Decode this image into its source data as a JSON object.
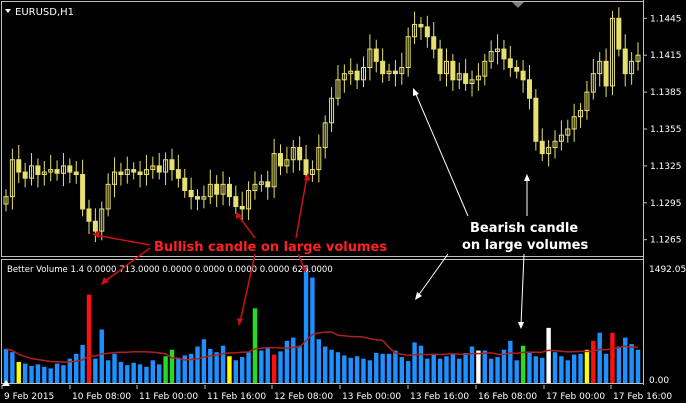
{
  "main": {
    "symbol": "EURUSD,H1",
    "price_ticks": [
      "1.1445",
      "1.1415",
      "1.1385",
      "1.1355",
      "1.1325",
      "1.1295",
      "1.1265"
    ],
    "annotations": {
      "bullish": "Bullish candle on large volumes",
      "bearish_line1": "Bearish candle",
      "bearish_line2": "on large volumes"
    }
  },
  "indicator": {
    "label": "Better Volume 1.4 0.0000 713.0000 0.0000 0.0000 0.0000 0.0000 626.0000",
    "max_label": "1492.05",
    "min_label": "0.00"
  },
  "time_axis": {
    "labels": [
      "9 Feb 2015",
      "10 Feb 08:00",
      "11 Feb 00:00",
      "11 Feb 16:00",
      "12 Feb 08:00",
      "13 Feb 00:00",
      "13 Feb 16:00",
      "16 Feb 08:00",
      "17 Feb 00:00",
      "17 Feb 16:00"
    ]
  },
  "colors": {
    "background": "#000000",
    "grid_border": "#c0c0c0",
    "candle": "#e6e070",
    "vol_normal": "#1e90ff",
    "vol_high": "#ff1010",
    "vol_climax": "#ffffff",
    "vol_low": "#ffff00",
    "vol_churn": "#22dd22",
    "vol_average": "#b02020",
    "bullish_arrow": "#d01010",
    "bullish_text": "#ff2020",
    "bearish_text": "#ffffff"
  },
  "chart_data": {
    "type": "candlestick",
    "series": [
      {
        "name": "EURUSD,H1",
        "values_description_free": true
      }
    ],
    "price_range": [
      1.1255,
      1.1455
    ],
    "closes": [
      1.13,
      1.133,
      1.132,
      1.1315,
      1.1325,
      1.1318,
      1.132,
      1.1322,
      1.1319,
      1.1325,
      1.132,
      1.1318,
      1.129,
      1.128,
      1.1272,
      1.129,
      1.131,
      1.132,
      1.1318,
      1.1322,
      1.132,
      1.1318,
      1.1322,
      1.1325,
      1.132,
      1.133,
      1.1322,
      1.1315,
      1.1305,
      1.13,
      1.1298,
      1.13,
      1.131,
      1.1302,
      1.131,
      1.13,
      1.1292,
      1.129,
      1.1305,
      1.131,
      1.1312,
      1.1308,
      1.1335,
      1.1325,
      1.133,
      1.134,
      1.133,
      1.1318,
      1.1322,
      1.134,
      1.136,
      1.138,
      1.1395,
      1.14,
      1.1402,
      1.1395,
      1.1405,
      1.142,
      1.141,
      1.14,
      1.1402,
      1.14,
      1.1405,
      1.143,
      1.144,
      1.1438,
      1.143,
      1.142,
      1.14,
      1.141,
      1.1395,
      1.14,
      1.1392,
      1.1395,
      1.1398,
      1.141,
      1.1418,
      1.142,
      1.1412,
      1.1405,
      1.1402,
      1.1395,
      1.138,
      1.1345,
      1.1335,
      1.134,
      1.1345,
      1.135,
      1.1355,
      1.1365,
      1.137,
      1.1385,
      1.14,
      1.141,
      1.139,
      1.1445,
      1.142,
      1.14,
      1.141,
      1.1415
    ],
    "volumes": [
      420,
      380,
      260,
      240,
      210,
      230,
      200,
      180,
      240,
      220,
      300,
      360,
      470,
      1090,
      300,
      660,
      280,
      360,
      260,
      220,
      250,
      230,
      200,
      280,
      230,
      330,
      410,
      300,
      340,
      360,
      450,
      540,
      420,
      380,
      460,
      330,
      280,
      320,
      380,
      920,
      400,
      440,
      350,
      390,
      520,
      560,
      460,
      1450,
      1300,
      540,
      450,
      410,
      380,
      340,
      310,
      330,
      300,
      280,
      370,
      360,
      360,
      400,
      320,
      270,
      500,
      460,
      300,
      350,
      300,
      330,
      360,
      300,
      370,
      450,
      400,
      400,
      300,
      320,
      410,
      520,
      280,
      460,
      380,
      330,
      310,
      680,
      380,
      330,
      280,
      350,
      360,
      410,
      520,
      620,
      360,
      620,
      450,
      560,
      480,
      410
    ],
    "volume_kinds": [
      "n",
      "n",
      "y",
      "n",
      "n",
      "n",
      "n",
      "n",
      "n",
      "n",
      "n",
      "n",
      "n",
      "r",
      "n",
      "n",
      "n",
      "n",
      "n",
      "n",
      "n",
      "n",
      "n",
      "n",
      "n",
      "g",
      "g",
      "n",
      "n",
      "n",
      "n",
      "n",
      "n",
      "n",
      "n",
      "y",
      "n",
      "n",
      "n",
      "g",
      "n",
      "n",
      "r",
      "n",
      "n",
      "n",
      "n",
      "n",
      "n",
      "n",
      "n",
      "n",
      "n",
      "n",
      "n",
      "n",
      "n",
      "n",
      "n",
      "n",
      "n",
      "n",
      "n",
      "n",
      "n",
      "n",
      "n",
      "n",
      "n",
      "n",
      "n",
      "n",
      "n",
      "n",
      "w",
      "n",
      "n",
      "n",
      "n",
      "n",
      "n",
      "g",
      "n",
      "n",
      "n",
      "w",
      "n",
      "n",
      "n",
      "n",
      "n",
      "y",
      "r",
      "n",
      "n",
      "r",
      "n",
      "n",
      "n",
      "n"
    ]
  }
}
